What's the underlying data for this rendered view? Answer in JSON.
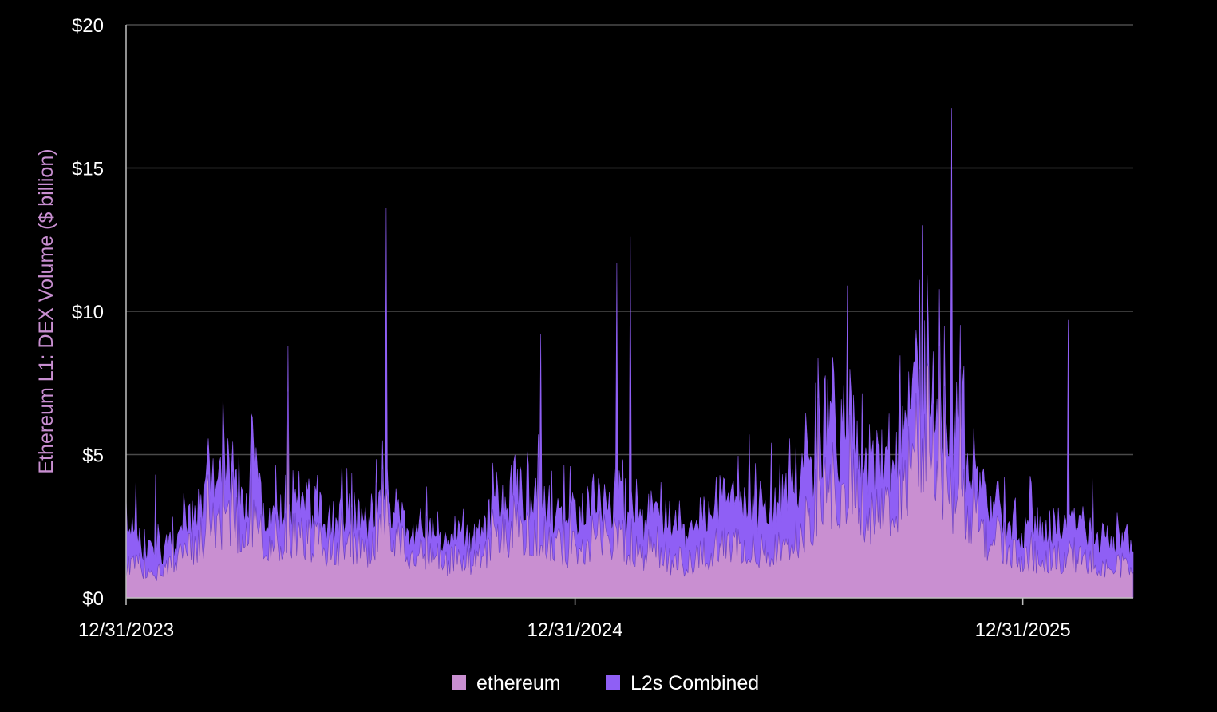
{
  "chart_data": {
    "type": "area",
    "stacked": true,
    "xlabel": "",
    "ylabel": "Ethereum L1: DEX Volume ($ billion)",
    "ylim": [
      0,
      20
    ],
    "y_ticks": [
      0,
      5,
      10,
      15,
      20
    ],
    "y_tick_labels": [
      "$0",
      "$5",
      "$10",
      "$15",
      "$20"
    ],
    "x_range": [
      "2023-12-31",
      "2026-03-31"
    ],
    "x_ticks": [
      "2023-12-31",
      "2024-12-31",
      "2025-12-31"
    ],
    "x_tick_labels": [
      "12/31/2023",
      "12/31/2024",
      "12/31/2025"
    ],
    "grid": "horizontal",
    "legend": "bottom-center",
    "colors": {
      "background": "#000000",
      "grid": "#4a4a4a",
      "ethereum": "#c98fd1",
      "l2": "#8f5ff5"
    },
    "series": [
      {
        "name": "ethereum",
        "x": [
          "2024-01-01",
          "2024-01-15",
          "2024-02-01",
          "2024-02-15",
          "2024-03-01",
          "2024-03-15",
          "2024-04-01",
          "2024-04-15",
          "2024-05-01",
          "2024-05-15",
          "2024-06-01",
          "2024-06-15",
          "2024-07-01",
          "2024-07-15",
          "2024-08-01",
          "2024-08-15",
          "2024-09-01",
          "2024-09-15",
          "2024-10-01",
          "2024-10-15",
          "2024-11-01",
          "2024-11-15",
          "2024-12-01",
          "2024-12-15",
          "2025-01-01",
          "2025-01-15",
          "2025-02-01",
          "2025-02-15",
          "2025-03-01",
          "2025-03-15",
          "2025-04-01",
          "2025-04-15",
          "2025-05-01",
          "2025-05-15",
          "2025-06-01",
          "2025-06-15",
          "2025-07-01",
          "2025-07-15",
          "2025-08-01",
          "2025-08-15",
          "2025-09-01",
          "2025-09-15",
          "2025-10-01",
          "2025-10-15",
          "2025-11-01",
          "2025-11-15",
          "2025-12-01",
          "2025-12-15",
          "2026-01-01",
          "2026-01-15",
          "2026-02-01",
          "2026-02-15",
          "2026-03-01",
          "2026-03-15"
        ],
        "values": [
          1.0,
          1.0,
          0.9,
          1.3,
          2.0,
          2.6,
          2.3,
          2.2,
          1.9,
          2.0,
          1.8,
          1.5,
          1.6,
          1.4,
          2.3,
          1.6,
          1.2,
          1.2,
          1.2,
          1.3,
          2.0,
          2.2,
          2.2,
          1.6,
          1.6,
          2.0,
          1.9,
          1.7,
          1.4,
          1.3,
          1.1,
          1.4,
          1.8,
          1.8,
          1.6,
          1.5,
          2.1,
          2.9,
          3.6,
          3.5,
          2.6,
          2.8,
          4.6,
          5.6,
          3.4,
          2.8,
          2.0,
          1.8,
          1.2,
          1.3,
          1.3,
          1.3,
          1.2,
          1.0
        ]
      },
      {
        "name": "L2s Combined",
        "x": [
          "2024-01-01",
          "2024-01-15",
          "2024-02-01",
          "2024-02-15",
          "2024-03-01",
          "2024-03-15",
          "2024-04-01",
          "2024-04-15",
          "2024-05-01",
          "2024-05-15",
          "2024-06-01",
          "2024-06-15",
          "2024-07-01",
          "2024-07-15",
          "2024-08-01",
          "2024-08-15",
          "2024-09-01",
          "2024-09-15",
          "2024-10-01",
          "2024-10-15",
          "2024-11-01",
          "2024-11-15",
          "2024-12-01",
          "2024-12-15",
          "2025-01-01",
          "2025-01-15",
          "2025-02-01",
          "2025-02-15",
          "2025-03-01",
          "2025-03-15",
          "2025-04-01",
          "2025-04-15",
          "2025-05-01",
          "2025-05-15",
          "2025-06-01",
          "2025-06-15",
          "2025-07-01",
          "2025-07-15",
          "2025-08-01",
          "2025-08-15",
          "2025-09-01",
          "2025-09-15",
          "2025-10-01",
          "2025-10-15",
          "2025-11-01",
          "2025-11-15",
          "2025-12-01",
          "2025-12-15",
          "2026-01-01",
          "2026-01-15",
          "2026-02-01",
          "2026-02-15",
          "2026-03-01",
          "2026-03-15"
        ],
        "values": [
          1.0,
          0.8,
          0.6,
          0.8,
          1.2,
          1.6,
          1.4,
          1.3,
          1.1,
          1.2,
          1.1,
          1.0,
          1.1,
          1.0,
          1.1,
          0.9,
          0.7,
          0.7,
          0.7,
          0.8,
          1.2,
          1.3,
          1.3,
          1.0,
          1.0,
          1.3,
          1.4,
          1.3,
          1.2,
          1.2,
          1.1,
          1.4,
          1.7,
          1.8,
          1.6,
          1.5,
          1.8,
          2.1,
          2.2,
          2.1,
          1.7,
          1.9,
          2.0,
          2.1,
          1.6,
          1.4,
          1.2,
          1.1,
          1.0,
          1.1,
          1.1,
          1.1,
          1.0,
          0.9
        ]
      }
    ],
    "peaks": {
      "ethereum": [
        [
          "2024-05-11",
          7.2
        ],
        [
          "2024-07-30",
          3.8
        ],
        [
          "2025-11-10",
          8.0
        ]
      ],
      "L2s Combined": [
        [
          "2024-01-24",
          4.3
        ],
        [
          "2024-04-12",
          6.3
        ],
        [
          "2024-05-11",
          8.8
        ],
        [
          "2024-07-30",
          13.6
        ],
        [
          "2024-12-03",
          9.2
        ],
        [
          "2025-02-03",
          11.7
        ],
        [
          "2025-02-14",
          12.6
        ],
        [
          "2025-08-10",
          10.9
        ],
        [
          "2025-10-10",
          13.0
        ],
        [
          "2025-11-03",
          17.1
        ],
        [
          "2026-02-06",
          9.7
        ]
      ]
    }
  }
}
